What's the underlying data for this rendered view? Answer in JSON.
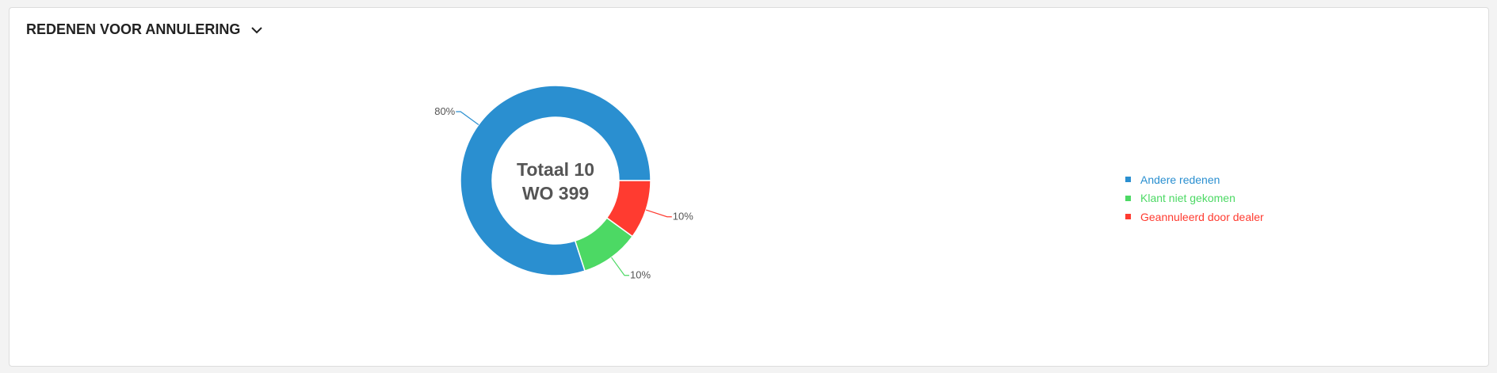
{
  "header": {
    "title": "REDENEN VOOR ANNULERING",
    "toggle_icon": "chevron-down-icon"
  },
  "chart_data": {
    "type": "pie",
    "donut": true,
    "center_text": [
      "Totaal 10",
      "WO 399"
    ],
    "series": [
      {
        "name": "Andere redenen",
        "value": 80,
        "label": "80%",
        "color": "#2a8fd0"
      },
      {
        "name": "Klant niet gekomen",
        "value": 10,
        "label": "10%",
        "color": "#4cd964"
      },
      {
        "name": "Geannuleerd door dealer",
        "value": 10,
        "label": "10%",
        "color": "#ff3b30"
      }
    ],
    "legend_position": "right"
  }
}
